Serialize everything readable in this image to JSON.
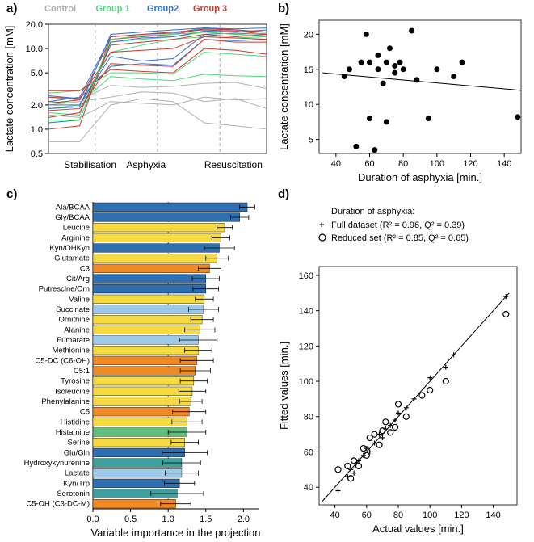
{
  "panelLabels": {
    "a": "a)",
    "b": "b)",
    "c": "c)",
    "d": "d)"
  },
  "colors": {
    "control": "#b0b0b0",
    "group1": "#4fd67a",
    "group2": "#2f6fd0",
    "group3": "#c63a2f",
    "axis": "#000000",
    "grid_dash": "#888888",
    "bar_palette": {
      "steelblue": "#2f6fb0",
      "yellow": "#f5db3f",
      "lightblue": "#9fc9e8",
      "orange": "#f08a24",
      "green": "#5fbf7a",
      "teal": "#3fa0a0"
    },
    "scatter_fill": "#000000",
    "background": "#ffffff"
  },
  "panel_a": {
    "title_axis_y": "Lactate concentration [mM]",
    "legend": [
      {
        "label": "Control",
        "color": "#b0b0b0"
      },
      {
        "label": "Group 1",
        "color": "#4fd67a"
      },
      {
        "label": "Group2",
        "color": "#2f6fd0"
      },
      {
        "label": "Group 3",
        "color": "#c63a2f"
      }
    ],
    "phases": [
      "Stabilisation",
      "Asphyxia",
      "Resuscitation"
    ],
    "y_ticks": [
      0.5,
      1.0,
      2.0,
      5.0,
      10.0,
      20.0
    ],
    "y_scale": "log",
    "x_positions": [
      1,
      2,
      3,
      4,
      5,
      6,
      7,
      8
    ],
    "dash_x": [
      2.5,
      4.5,
      6.5
    ],
    "series": [
      {
        "color": "#b0b0b0",
        "y": [
          0.7,
          0.7,
          2.0,
          2.4,
          2.2,
          1.2,
          1.1,
          1.0
        ]
      },
      {
        "color": "#b0b0b0",
        "y": [
          1.5,
          1.4,
          2.2,
          2.1,
          2.0,
          2.5,
          2.3,
          2.4
        ]
      },
      {
        "color": "#b0b0b0",
        "y": [
          2.0,
          2.2,
          2.5,
          2.9,
          2.8,
          2.2,
          2.4,
          1.8
        ]
      },
      {
        "color": "#b0b0b0",
        "y": [
          2.5,
          2.3,
          3.5,
          3.3,
          3.4,
          3.7,
          3.8,
          3.2
        ]
      },
      {
        "color": "#4fd67a",
        "y": [
          1.8,
          2.0,
          9.0,
          11.0,
          13.0,
          14.0,
          13.5,
          14.0
        ]
      },
      {
        "color": "#4fd67a",
        "y": [
          2.2,
          2.1,
          4.5,
          4.2,
          4.0,
          4.8,
          4.6,
          4.5
        ]
      },
      {
        "color": "#4fd67a",
        "y": [
          1.6,
          1.5,
          12.0,
          13.0,
          14.0,
          16.0,
          15.0,
          14.0
        ]
      },
      {
        "color": "#4fd67a",
        "y": [
          2.8,
          3.0,
          5.0,
          5.0,
          4.8,
          9.0,
          8.5,
          8.0
        ]
      },
      {
        "color": "#2f6fd0",
        "y": [
          2.0,
          2.0,
          8.0,
          7.0,
          7.5,
          15.0,
          15.5,
          15.0
        ]
      },
      {
        "color": "#2f6fd0",
        "y": [
          1.2,
          1.3,
          12.0,
          13.5,
          14.0,
          16.5,
          16.0,
          17.0
        ]
      },
      {
        "color": "#2f6fd0",
        "y": [
          2.2,
          2.5,
          14.0,
          15.0,
          15.5,
          18.0,
          17.0,
          16.0
        ]
      },
      {
        "color": "#2f6fd0",
        "y": [
          2.6,
          2.4,
          6.0,
          6.5,
          6.2,
          13.0,
          12.5,
          13.0
        ]
      },
      {
        "color": "#c63a2f",
        "y": [
          1.4,
          1.6,
          11.0,
          12.0,
          13.0,
          15.0,
          14.0,
          15.0
        ]
      },
      {
        "color": "#c63a2f",
        "y": [
          1.0,
          1.1,
          14.0,
          15.0,
          16.0,
          17.0,
          16.5,
          15.0
        ]
      },
      {
        "color": "#c63a2f",
        "y": [
          2.1,
          2.3,
          13.0,
          14.0,
          15.0,
          17.5,
          17.0,
          16.0
        ]
      },
      {
        "color": "#c63a2f",
        "y": [
          2.5,
          2.4,
          9.0,
          9.5,
          10.0,
          14.0,
          13.5,
          13.0
        ]
      },
      {
        "color": "#c63a2f",
        "y": [
          3.0,
          3.0,
          5.5,
          5.2,
          5.0,
          10.0,
          9.5,
          8.5
        ]
      },
      {
        "color": "#2f6fd0",
        "y": [
          1.8,
          1.9,
          15.0,
          16.0,
          17.0,
          18.0,
          17.5,
          18.0
        ]
      },
      {
        "color": "#4fd67a",
        "y": [
          1.3,
          1.3,
          13.0,
          14.5,
          15.0,
          16.0,
          15.0,
          15.5
        ]
      },
      {
        "color": "#c63a2f",
        "y": [
          1.7,
          1.8,
          6.5,
          6.2,
          6.0,
          13.0,
          12.0,
          12.0
        ]
      }
    ]
  },
  "panel_b": {
    "x_label": "Duration of asphyxia [min.]",
    "y_label": "Lactate concentration [mM]",
    "xlim": [
      30,
      150
    ],
    "ylim": [
      3,
      22
    ],
    "x_ticks": [
      40,
      60,
      80,
      100,
      120,
      140
    ],
    "y_ticks": [
      5,
      10,
      15,
      20
    ],
    "points": [
      [
        45,
        14
      ],
      [
        48,
        15
      ],
      [
        52,
        4
      ],
      [
        55,
        16
      ],
      [
        58,
        20
      ],
      [
        60,
        16
      ],
      [
        60,
        8
      ],
      [
        63,
        3.5
      ],
      [
        65,
        15
      ],
      [
        65,
        17
      ],
      [
        68,
        13
      ],
      [
        70,
        16
      ],
      [
        70,
        7.5
      ],
      [
        72,
        18
      ],
      [
        75,
        15.5
      ],
      [
        75,
        14.5
      ],
      [
        78,
        16
      ],
      [
        80,
        15
      ],
      [
        85,
        20.5
      ],
      [
        88,
        13.5
      ],
      [
        95,
        8
      ],
      [
        100,
        15
      ],
      [
        110,
        14
      ],
      [
        115,
        16
      ],
      [
        148,
        8.2
      ]
    ],
    "fit_line": {
      "x1": 32,
      "y1": 14.5,
      "x2": 150,
      "y2": 12.0
    }
  },
  "panel_c": {
    "x_label": "Variable importance in the projection",
    "xlim": [
      0,
      2.2
    ],
    "x_ticks": [
      0.0,
      0.5,
      1.0,
      1.5,
      2.0
    ],
    "ref_line_x": 1.0,
    "bars": [
      {
        "label": "Ala/BCAA",
        "value": 2.05,
        "err": 0.1,
        "color": "steelblue"
      },
      {
        "label": "Gly/BCAA",
        "value": 1.95,
        "err": 0.12,
        "color": "steelblue"
      },
      {
        "label": "Leucine",
        "value": 1.75,
        "err": 0.1,
        "color": "yellow"
      },
      {
        "label": "Arginine",
        "value": 1.7,
        "err": 0.12,
        "color": "yellow"
      },
      {
        "label": "Kyn/OHKyn",
        "value": 1.68,
        "err": 0.2,
        "color": "steelblue"
      },
      {
        "label": "Glutamate",
        "value": 1.65,
        "err": 0.15,
        "color": "yellow"
      },
      {
        "label": "C3",
        "value": 1.55,
        "err": 0.15,
        "color": "orange"
      },
      {
        "label": "Cit/Arg",
        "value": 1.5,
        "err": 0.18,
        "color": "steelblue"
      },
      {
        "label": "Putrescine/Orn",
        "value": 1.5,
        "err": 0.17,
        "color": "steelblue"
      },
      {
        "label": "Valine",
        "value": 1.48,
        "err": 0.12,
        "color": "yellow"
      },
      {
        "label": "Succinate",
        "value": 1.47,
        "err": 0.2,
        "color": "lightblue"
      },
      {
        "label": "Ornithine",
        "value": 1.45,
        "err": 0.15,
        "color": "yellow"
      },
      {
        "label": "Alanine",
        "value": 1.42,
        "err": 0.2,
        "color": "yellow"
      },
      {
        "label": "Fumarate",
        "value": 1.4,
        "err": 0.25,
        "color": "lightblue"
      },
      {
        "label": "Methionine",
        "value": 1.4,
        "err": 0.18,
        "color": "yellow"
      },
      {
        "label": "C5-DC (C6-OH)",
        "value": 1.38,
        "err": 0.22,
        "color": "orange"
      },
      {
        "label": "C5:1",
        "value": 1.36,
        "err": 0.2,
        "color": "orange"
      },
      {
        "label": "Tyrosine",
        "value": 1.34,
        "err": 0.18,
        "color": "yellow"
      },
      {
        "label": "Isoleucine",
        "value": 1.32,
        "err": 0.18,
        "color": "yellow"
      },
      {
        "label": "Phenylalanine",
        "value": 1.3,
        "err": 0.15,
        "color": "yellow"
      },
      {
        "label": "C5",
        "value": 1.28,
        "err": 0.22,
        "color": "orange"
      },
      {
        "label": "Histidine",
        "value": 1.25,
        "err": 0.2,
        "color": "yellow"
      },
      {
        "label": "Histamine",
        "value": 1.25,
        "err": 0.25,
        "color": "green"
      },
      {
        "label": "Serine",
        "value": 1.22,
        "err": 0.18,
        "color": "yellow"
      },
      {
        "label": "Glu/Gln",
        "value": 1.22,
        "err": 0.3,
        "color": "steelblue"
      },
      {
        "label": "Hydroxykynurenine",
        "value": 1.18,
        "err": 0.25,
        "color": "teal"
      },
      {
        "label": "Lactate",
        "value": 1.18,
        "err": 0.22,
        "color": "lightblue"
      },
      {
        "label": "Kyn/Trp",
        "value": 1.15,
        "err": 0.2,
        "color": "steelblue"
      },
      {
        "label": "Serotonin",
        "value": 1.12,
        "err": 0.35,
        "color": "teal"
      },
      {
        "label": "C5-OH (C3-DC-M)",
        "value": 1.1,
        "err": 0.2,
        "color": "orange"
      }
    ]
  },
  "panel_d": {
    "title_lines": [
      "Duration of asphyxia:",
      "Full dataset (R² = 0.96, Q² = 0.39)",
      "Reduced set (R² = 0.85, Q² = 0.65)"
    ],
    "legend_markers": [
      "+",
      "o"
    ],
    "x_label": "Actual values [min.]",
    "y_label": "Fitted values [min.]",
    "xlim": [
      30,
      155
    ],
    "ylim": [
      30,
      165
    ],
    "x_ticks": [
      40,
      60,
      80,
      100,
      120,
      140
    ],
    "y_ticks": [
      40,
      60,
      80,
      100,
      120,
      140,
      160
    ],
    "identity_line": {
      "x1": 32,
      "y1": 32,
      "x2": 150,
      "y2": 150
    },
    "plus_points": [
      [
        42,
        38
      ],
      [
        48,
        46
      ],
      [
        50,
        50
      ],
      [
        52,
        48
      ],
      [
        55,
        55
      ],
      [
        58,
        58
      ],
      [
        60,
        62
      ],
      [
        62,
        60
      ],
      [
        65,
        65
      ],
      [
        68,
        70
      ],
      [
        70,
        68
      ],
      [
        72,
        73
      ],
      [
        75,
        75
      ],
      [
        78,
        78
      ],
      [
        80,
        82
      ],
      [
        85,
        85
      ],
      [
        90,
        90
      ],
      [
        100,
        102
      ],
      [
        110,
        108
      ],
      [
        115,
        115
      ],
      [
        148,
        148
      ]
    ],
    "circle_points": [
      [
        42,
        50
      ],
      [
        48,
        52
      ],
      [
        50,
        45
      ],
      [
        52,
        55
      ],
      [
        55,
        52
      ],
      [
        58,
        62
      ],
      [
        60,
        58
      ],
      [
        62,
        68
      ],
      [
        65,
        70
      ],
      [
        68,
        64
      ],
      [
        70,
        72
      ],
      [
        72,
        77
      ],
      [
        75,
        71
      ],
      [
        78,
        74
      ],
      [
        80,
        87
      ],
      [
        85,
        80
      ],
      [
        95,
        92
      ],
      [
        100,
        95
      ],
      [
        110,
        100
      ],
      [
        148,
        138
      ]
    ]
  }
}
